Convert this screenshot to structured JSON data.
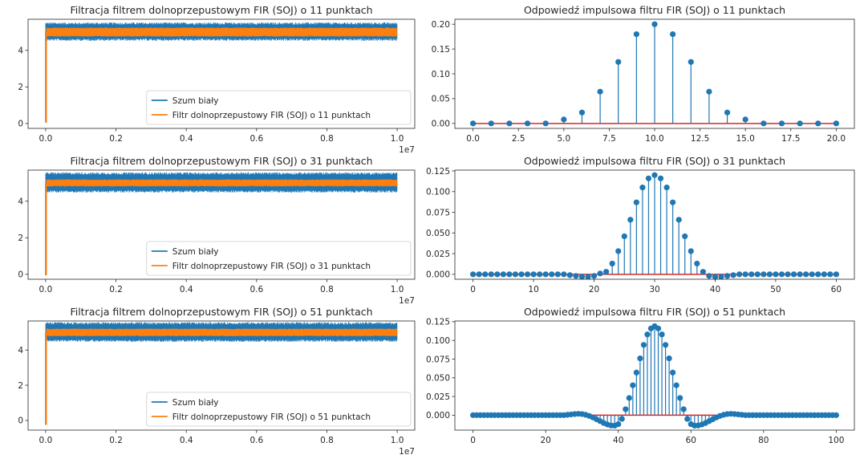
{
  "chart_data": [
    {
      "type": "line",
      "title": "Filtracja filtrem dolnoprzepustowym FIR (SOJ) o 11 punktach",
      "x_range": [
        0,
        10000000
      ],
      "xlim": [
        -500000,
        10500000
      ],
      "x_ticks": [
        0,
        2000000,
        4000000,
        6000000,
        8000000,
        10000000
      ],
      "x_tick_labels": [
        "0.0",
        "0.2",
        "0.4",
        "0.6",
        "0.8",
        "1.0"
      ],
      "x_offset_label": "1e7",
      "ylim": [
        -0.27,
        5.7
      ],
      "y_ticks": [
        0,
        2,
        4
      ],
      "y_tick_labels": [
        "0",
        "2",
        "4"
      ],
      "legend_position": "lower-right",
      "series": [
        {
          "name": "Szum biały",
          "color": "#1f77b4",
          "mean": 5.0,
          "band": [
            4.65,
            5.4
          ]
        },
        {
          "name": "Filtr dolnoprzepustowy FIR (SOJ) o 11 punktach",
          "color": "#ff7f0e",
          "mean": 5.0,
          "band": [
            4.8,
            5.2
          ],
          "start_value": 0.05
        }
      ]
    },
    {
      "type": "stem",
      "title": "Odpowiedź impulsowa filtru FIR (SOJ) o 11 punktach",
      "xlim": [
        -1,
        21
      ],
      "ylim": [
        -0.01,
        0.21
      ],
      "x_ticks": [
        0,
        2.5,
        5,
        7.5,
        10,
        12.5,
        15,
        17.5,
        20
      ],
      "x_tick_labels": [
        "0.0",
        "2.5",
        "5.0",
        "7.5",
        "10.0",
        "12.5",
        "15.0",
        "17.5",
        "20.0"
      ],
      "y_ticks": [
        0,
        0.05,
        0.1,
        0.15,
        0.2
      ],
      "y_tick_labels": [
        "0.00",
        "0.05",
        "0.10",
        "0.15",
        "0.20"
      ],
      "x": [
        0,
        1,
        2,
        3,
        4,
        5,
        6,
        7,
        8,
        9,
        10,
        11,
        12,
        13,
        14,
        15,
        16,
        17,
        18,
        19,
        20
      ],
      "values": [
        0,
        0,
        0,
        0,
        0,
        0.008,
        0.022,
        0.064,
        0.124,
        0.18,
        0.2,
        0.18,
        0.124,
        0.064,
        0.022,
        0.008,
        0,
        0,
        0,
        0,
        0
      ]
    },
    {
      "type": "line",
      "title": "Filtracja filtrem dolnoprzepustowym FIR (SOJ) o 31 punktach",
      "x_range": [
        0,
        10000000
      ],
      "xlim": [
        -500000,
        10500000
      ],
      "x_ticks": [
        0,
        2000000,
        4000000,
        6000000,
        8000000,
        10000000
      ],
      "x_tick_labels": [
        "0.0",
        "0.2",
        "0.4",
        "0.6",
        "0.8",
        "1.0"
      ],
      "x_offset_label": "1e7",
      "ylim": [
        -0.27,
        5.7
      ],
      "y_ticks": [
        0,
        2,
        4
      ],
      "y_tick_labels": [
        "0",
        "2",
        "4"
      ],
      "legend_position": "lower-right",
      "series": [
        {
          "name": "Szum biały",
          "color": "#1f77b4",
          "mean": 5.0,
          "band": [
            4.6,
            5.45
          ]
        },
        {
          "name": "Filtr dolnoprzepustowy FIR (SOJ) o 31 punktach",
          "color": "#ff7f0e",
          "mean": 5.0,
          "band": [
            4.85,
            5.15
          ],
          "start_value": -0.05
        }
      ]
    },
    {
      "type": "stem",
      "title": "Odpowiedź impulsowa filtru FIR (SOJ) o 31 punktach",
      "xlim": [
        -3,
        63
      ],
      "ylim": [
        -0.006,
        0.126
      ],
      "x_ticks": [
        0,
        10,
        20,
        30,
        40,
        50,
        60
      ],
      "x_tick_labels": [
        "0",
        "10",
        "20",
        "30",
        "40",
        "50",
        "60"
      ],
      "y_ticks": [
        0,
        0.025,
        0.05,
        0.075,
        0.1,
        0.125
      ],
      "y_tick_labels": [
        "0.000",
        "0.025",
        "0.050",
        "0.075",
        "0.100",
        "0.125"
      ],
      "x": [
        0,
        1,
        2,
        3,
        4,
        5,
        6,
        7,
        8,
        9,
        10,
        11,
        12,
        13,
        14,
        15,
        16,
        17,
        18,
        19,
        20,
        21,
        22,
        23,
        24,
        25,
        26,
        27,
        28,
        29,
        30,
        31,
        32,
        33,
        34,
        35,
        36,
        37,
        38,
        39,
        40,
        41,
        42,
        43,
        44,
        45,
        46,
        47,
        48,
        49,
        50,
        51,
        52,
        53,
        54,
        55,
        56,
        57,
        58,
        59,
        60
      ],
      "values": [
        0,
        0,
        0,
        0,
        0,
        0,
        0,
        0,
        0,
        0,
        0,
        0,
        0,
        0,
        0,
        0,
        -0.001,
        -0.002,
        -0.003,
        -0.003,
        -0.002,
        0.001,
        0.003,
        0.013,
        0.028,
        0.046,
        0.066,
        0.087,
        0.105,
        0.116,
        0.12,
        0.116,
        0.105,
        0.087,
        0.066,
        0.046,
        0.028,
        0.013,
        0.003,
        -0.002,
        -0.003,
        -0.003,
        -0.002,
        -0.001,
        0,
        0,
        0,
        0,
        0,
        0,
        0,
        0,
        0,
        0,
        0,
        0,
        0,
        0,
        0,
        0,
        0
      ]
    },
    {
      "type": "line",
      "title": "Filtracja filtrem dolnoprzepustowym FIR (SOJ) o 51 punktach",
      "x_range": [
        0,
        10000000
      ],
      "xlim": [
        -500000,
        10500000
      ],
      "x_ticks": [
        0,
        2000000,
        4000000,
        6000000,
        8000000,
        10000000
      ],
      "x_tick_labels": [
        "0.0",
        "0.2",
        "0.4",
        "0.6",
        "0.8",
        "1.0"
      ],
      "x_offset_label": "1e7",
      "ylim": [
        -0.55,
        5.65
      ],
      "y_ticks": [
        0,
        2,
        4
      ],
      "y_tick_labels": [
        "0",
        "2",
        "4"
      ],
      "legend_position": "lower-right",
      "series": [
        {
          "name": "Szum biały",
          "color": "#1f77b4",
          "mean": 5.0,
          "band": [
            4.6,
            5.45
          ]
        },
        {
          "name": "Filtr dolnoprzepustowy FIR (SOJ) o 51 punktach",
          "color": "#ff7f0e",
          "mean": 5.0,
          "band": [
            4.83,
            5.17
          ],
          "start_value": -0.25
        }
      ]
    },
    {
      "type": "stem",
      "title": "Odpowiedź impulsowa filtru FIR (SOJ) o 51 punktach",
      "xlim": [
        -5,
        105
      ],
      "ylim": [
        -0.02,
        0.126
      ],
      "x_ticks": [
        0,
        20,
        40,
        60,
        80,
        100
      ],
      "x_tick_labels": [
        "0",
        "20",
        "40",
        "60",
        "80",
        "100"
      ],
      "y_ticks": [
        0,
        0.025,
        0.05,
        0.075,
        0.1,
        0.125
      ],
      "y_tick_labels": [
        "0.000",
        "0.025",
        "0.050",
        "0.075",
        "0.100",
        "0.125"
      ],
      "x": [
        0,
        1,
        2,
        3,
        4,
        5,
        6,
        7,
        8,
        9,
        10,
        11,
        12,
        13,
        14,
        15,
        16,
        17,
        18,
        19,
        20,
        21,
        22,
        23,
        24,
        25,
        26,
        27,
        28,
        29,
        30,
        31,
        32,
        33,
        34,
        35,
        36,
        37,
        38,
        39,
        40,
        41,
        42,
        43,
        44,
        45,
        46,
        47,
        48,
        49,
        50,
        51,
        52,
        53,
        54,
        55,
        56,
        57,
        58,
        59,
        60,
        61,
        62,
        63,
        64,
        65,
        66,
        67,
        68,
        69,
        70,
        71,
        72,
        73,
        74,
        75,
        76,
        77,
        78,
        79,
        80,
        81,
        82,
        83,
        84,
        85,
        86,
        87,
        88,
        89,
        90,
        91,
        92,
        93,
        94,
        95,
        96,
        97,
        98,
        99,
        100
      ],
      "values": [
        0,
        0,
        0,
        0,
        0,
        0,
        0,
        0,
        0,
        0,
        0,
        0,
        0,
        0,
        0,
        0,
        0,
        0,
        0,
        0,
        0,
        0,
        0,
        0,
        0,
        0,
        0.0005,
        0.001,
        0.0015,
        0.0018,
        0.0015,
        0.0005,
        -0.001,
        -0.003,
        -0.0055,
        -0.008,
        -0.0105,
        -0.0125,
        -0.0138,
        -0.014,
        -0.012,
        -0.005,
        0.008,
        0.023,
        0.04,
        0.057,
        0.076,
        0.094,
        0.108,
        0.116,
        0.119,
        0.116,
        0.108,
        0.094,
        0.076,
        0.057,
        0.04,
        0.023,
        0.008,
        -0.005,
        -0.012,
        -0.014,
        -0.0138,
        -0.0125,
        -0.0105,
        -0.008,
        -0.0055,
        -0.003,
        -0.001,
        0.0005,
        0.0015,
        0.0018,
        0.0015,
        0.001,
        0.0005,
        0,
        0,
        0,
        0,
        0,
        0,
        0,
        0,
        0,
        0,
        0,
        0,
        0,
        0,
        0,
        0,
        0,
        0,
        0,
        0,
        0,
        0,
        0,
        0,
        0,
        0
      ]
    }
  ]
}
